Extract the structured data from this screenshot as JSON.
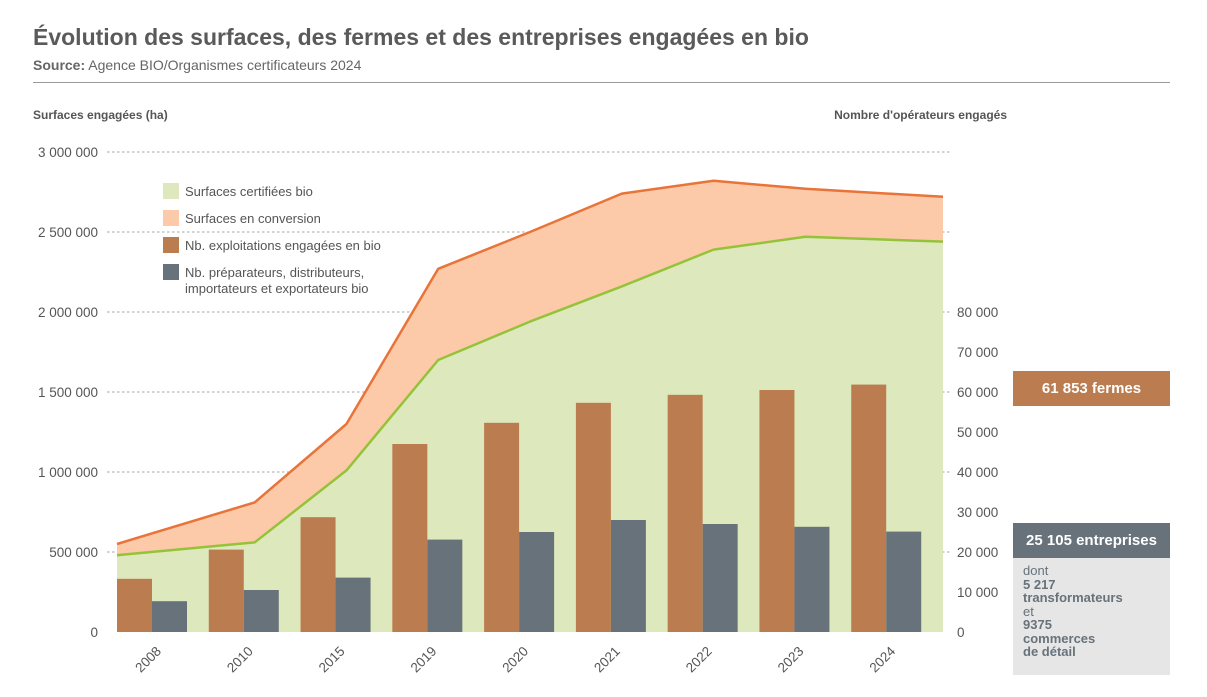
{
  "header": {
    "title": "Évolution des surfaces, des fermes et des entreprises engagées en bio",
    "source_label": "Source:",
    "source_text": " Agence BIO/Organismes certificateurs 2024"
  },
  "callouts": {
    "farms": "61 853 fermes",
    "enterprises": "25 105 entreprises",
    "detail": [
      "dont",
      "5 217",
      "transformateurs",
      "et",
      "9375",
      "commerces",
      "de détail"
    ]
  },
  "colors": {
    "certified_fill": "#dde9bd",
    "certified_line": "#96c23a",
    "conversion_fill": "#fccaa8",
    "total_line": "#e8743a",
    "farms_bar": "#bb7c4f",
    "operators_bar": "#67727b",
    "grid": "#8a8a8a",
    "text": "#555555"
  },
  "chart_data": {
    "type": "bar",
    "title": "Évolution des surfaces, des fermes et des entreprises engagées en bio",
    "categories": [
      "2008",
      "2010",
      "2015",
      "2019",
      "2020",
      "2021",
      "2022",
      "2023",
      "2024"
    ],
    "y_left": {
      "label": "Surfaces engagées (ha)",
      "range": [
        0,
        3000000
      ],
      "ticks": [
        0,
        500000,
        1000000,
        1500000,
        2000000,
        2500000,
        3000000
      ],
      "tick_labels": [
        "0",
        "500 000",
        "1 000 000",
        "1 500 000",
        "2 000 000",
        "2 500 000",
        "3 000 000"
      ]
    },
    "y_right": {
      "label": "Nombre d'opérateurs engagés",
      "range": [
        0,
        120000
      ],
      "ticks": [
        0,
        10000,
        20000,
        30000,
        40000,
        50000,
        60000,
        70000,
        80000
      ],
      "tick_labels": [
        "0",
        "10 000",
        "20 000",
        "30 000",
        "40 000",
        "50 000",
        "60 000",
        "70 000",
        "80 000"
      ]
    },
    "grid": "horizontal dashed",
    "legend_position": "top-left",
    "series": [
      {
        "name": "Surfaces certifiées bio",
        "kind": "area",
        "axis": "left",
        "values": [
          480000,
          560000,
          1010000,
          1700000,
          1940000,
          2160000,
          2390000,
          2470000,
          2440000
        ]
      },
      {
        "name": "Surfaces en conversion",
        "kind": "stacked-area",
        "axis": "left",
        "total_values": [
          550000,
          810000,
          1300000,
          2270000,
          2500000,
          2740000,
          2820000,
          2770000,
          2720000
        ]
      },
      {
        "name": "Nb. exploitations engagées en bio",
        "kind": "bar",
        "axis": "right",
        "values": [
          13300,
          20600,
          28700,
          47000,
          52300,
          57300,
          59300,
          60500,
          61853
        ]
      },
      {
        "name": "Nb. préparateurs, distributeurs, importateurs et exportateurs bio",
        "kind": "bar",
        "axis": "right",
        "values": [
          7700,
          10500,
          13600,
          23100,
          25000,
          28000,
          27000,
          26300,
          25105
        ]
      }
    ]
  }
}
